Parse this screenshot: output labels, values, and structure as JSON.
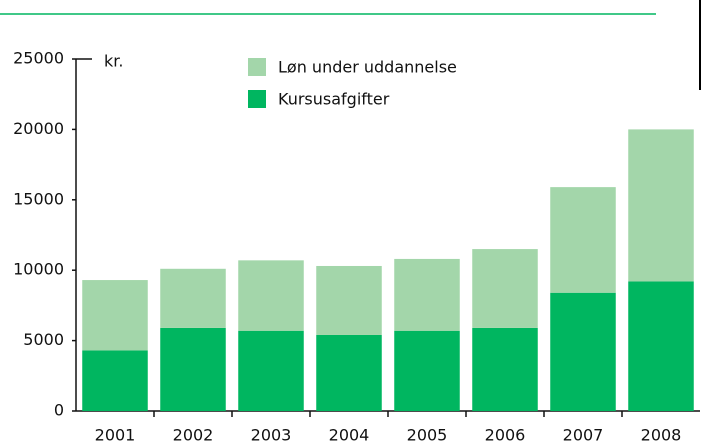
{
  "chart_data": {
    "type": "stacked_bar",
    "ylabel": "kr.",
    "categories": [
      "2001",
      "2002",
      "2003",
      "2004",
      "2005",
      "2006",
      "2007",
      "2008"
    ],
    "series": [
      {
        "name": "Kursusafgifter",
        "color": "#00b660",
        "values": [
          4300,
          5900,
          5700,
          5400,
          5700,
          5900,
          8400,
          9200
        ]
      },
      {
        "name": "Løn under uddannelse",
        "color": "#a3d6aa",
        "values": [
          5000,
          4200,
          5000,
          4900,
          5100,
          5600,
          7500,
          10800
        ]
      }
    ],
    "ylim": [
      0,
      25000
    ],
    "yticks": [
      0,
      5000,
      10000,
      15000,
      20000,
      25000
    ],
    "grid": false
  }
}
